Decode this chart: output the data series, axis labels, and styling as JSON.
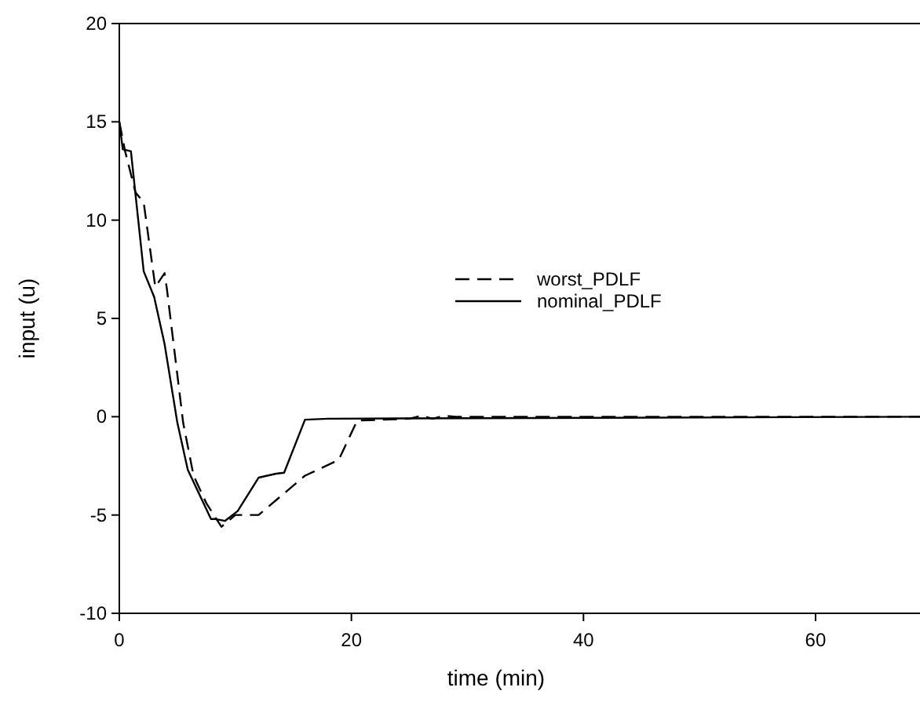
{
  "chart_data": {
    "type": "line",
    "xlabel": "time (min)",
    "ylabel": "input (u)",
    "xlim": [
      0,
      69
    ],
    "ylim": [
      -10,
      20
    ],
    "xticks": [
      0,
      20,
      40,
      60
    ],
    "yticks": [
      -10,
      -5,
      0,
      5,
      10,
      15,
      20
    ],
    "grid": false,
    "legend": "right",
    "marker": "none",
    "series": [
      {
        "name": "worst_PDLF",
        "color": "#000000",
        "line_style": "dashed",
        "x": [
          0,
          0.5,
          1.4,
          2.1,
          3.1,
          3.9,
          4.1,
          5.5,
          6.4,
          7.5,
          8.8,
          10,
          12,
          14,
          16,
          18.9,
          20.5,
          25,
          26,
          27,
          28,
          29,
          69
        ],
        "values": [
          15,
          13.5,
          11.4,
          10.9,
          6.6,
          7.3,
          6.5,
          -0.3,
          -3,
          -4.4,
          -5.6,
          -5,
          -5,
          -4,
          -3,
          -2.2,
          -0.2,
          -0.1,
          0.05,
          -0.1,
          0.05,
          0,
          0
        ]
      },
      {
        "name": "nominal_PDLF",
        "color": "#000000",
        "line_style": "solid",
        "x": [
          0,
          0.3,
          1,
          2.1,
          3,
          3.9,
          5,
          5.9,
          7.9,
          8.2,
          9.1,
          10.2,
          12,
          13.5,
          14.2,
          16,
          18,
          69
        ],
        "values": [
          15,
          13.6,
          13.5,
          7.4,
          6.1,
          3.7,
          -0.3,
          -2.7,
          -5.2,
          -5.2,
          -5.3,
          -4.8,
          -3.1,
          -2.9,
          -2.85,
          -0.15,
          -0.1,
          0
        ]
      }
    ]
  }
}
